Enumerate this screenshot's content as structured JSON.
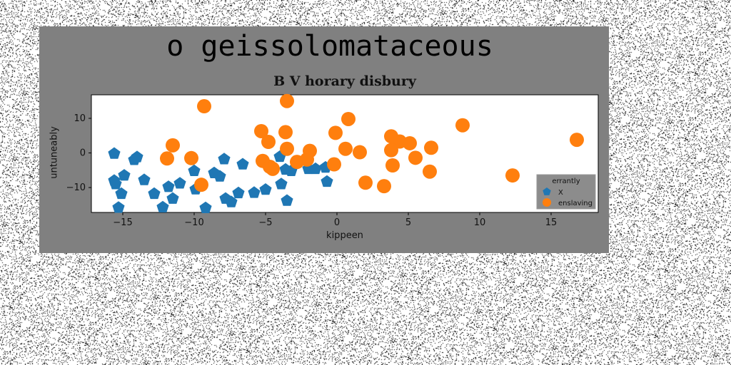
{
  "figure": {
    "suptitle": "o geissolomataceous"
  },
  "chart_data": {
    "type": "scatter",
    "title": "B V horary disbury",
    "xlabel": "kippeen",
    "ylabel": "untuneably",
    "xlim": [
      -17.2,
      18.3
    ],
    "ylim": [
      -17.2,
      16.8
    ],
    "xticks": [
      -15,
      -10,
      -5,
      0,
      5,
      10,
      15
    ],
    "yticks": [
      -10,
      0,
      10
    ],
    "xtick_labels": [
      "−15",
      "−10",
      "−5",
      "0",
      "5",
      "10",
      "15"
    ],
    "ytick_labels": [
      "−10",
      "0",
      "10"
    ],
    "grid": false,
    "legend": {
      "title": "errantly",
      "placement": "lower-right"
    },
    "series": [
      {
        "name": "X",
        "marker": "pentagon",
        "color": "#1f77b4",
        "points": [
          [
            -15.6,
            -0.2
          ],
          [
            -15.6,
            -8.0
          ],
          [
            -15.5,
            -9.0
          ],
          [
            -15.3,
            -15.8
          ],
          [
            -15.1,
            -11.8
          ],
          [
            -14.9,
            -6.5
          ],
          [
            -14.2,
            -2.0
          ],
          [
            -14.0,
            -1.2
          ],
          [
            -13.5,
            -7.8
          ],
          [
            -12.8,
            -11.8
          ],
          [
            -12.2,
            -15.7
          ],
          [
            -11.8,
            -9.8
          ],
          [
            -11.5,
            -13.2
          ],
          [
            -11.0,
            -8.8
          ],
          [
            -10.0,
            -5.2
          ],
          [
            -9.9,
            -10.5
          ],
          [
            -9.2,
            -15.9
          ],
          [
            -8.6,
            -5.8
          ],
          [
            -8.2,
            -6.8
          ],
          [
            -7.9,
            -1.8
          ],
          [
            -7.8,
            -13.2
          ],
          [
            -7.4,
            -14.2
          ],
          [
            -6.9,
            -11.6
          ],
          [
            -6.6,
            -3.3
          ],
          [
            -5.8,
            -11.5
          ],
          [
            -5.0,
            -10.6
          ],
          [
            -4.0,
            -1.1
          ],
          [
            -3.9,
            -9.0
          ],
          [
            -3.6,
            -4.8
          ],
          [
            -3.5,
            -13.8
          ],
          [
            -3.2,
            -5.2
          ],
          [
            -2.0,
            -4.6
          ],
          [
            -1.5,
            -4.6
          ],
          [
            -0.8,
            -4.2
          ],
          [
            -0.7,
            -8.3
          ]
        ]
      },
      {
        "name": "enslaving",
        "marker": "circle",
        "color": "#ff7f0e",
        "points": [
          [
            -9.3,
            13.5
          ],
          [
            -3.5,
            15.0
          ],
          [
            0.8,
            9.8
          ],
          [
            8.8,
            8.0
          ],
          [
            16.8,
            3.8
          ],
          [
            -5.3,
            6.3
          ],
          [
            -3.6,
            6.0
          ],
          [
            -0.1,
            5.8
          ],
          [
            3.8,
            4.8
          ],
          [
            4.4,
            3.3
          ],
          [
            5.1,
            2.8
          ],
          [
            -4.8,
            3.2
          ],
          [
            -3.5,
            1.2
          ],
          [
            0.6,
            1.2
          ],
          [
            1.6,
            0.2
          ],
          [
            3.8,
            0.8
          ],
          [
            6.6,
            1.5
          ],
          [
            -11.9,
            -1.6
          ],
          [
            -11.5,
            2.2
          ],
          [
            -10.2,
            -1.5
          ],
          [
            -5.2,
            -2.3
          ],
          [
            -4.7,
            -4.0
          ],
          [
            -4.5,
            -4.6
          ],
          [
            -2.8,
            -2.6
          ],
          [
            -1.9,
            0.6
          ],
          [
            -2.1,
            -1.9
          ],
          [
            -0.2,
            -3.3
          ],
          [
            3.9,
            -3.6
          ],
          [
            5.5,
            -1.4
          ],
          [
            6.5,
            -5.4
          ],
          [
            -9.5,
            -9.2
          ],
          [
            2.0,
            -8.6
          ],
          [
            3.3,
            -9.6
          ],
          [
            12.3,
            -6.5
          ]
        ]
      }
    ]
  },
  "colors": {
    "panel_background": "#808080",
    "axes_background": "#ffffff",
    "legend_background": "#8c8c8c",
    "series_x": "#1f77b4",
    "series_enslaving": "#ff7f0e"
  }
}
